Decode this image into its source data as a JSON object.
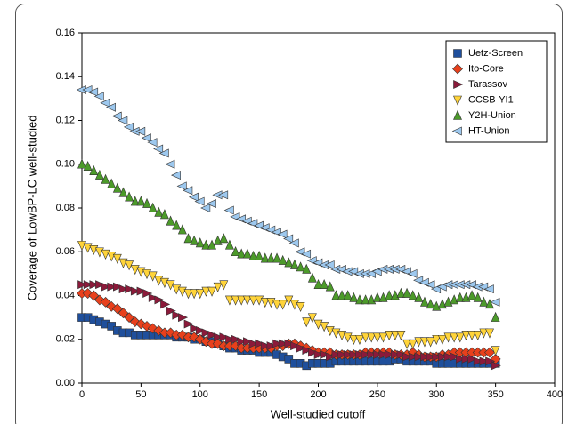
{
  "chart_data": {
    "type": "scatter",
    "xlabel": "Well-studied cutoff",
    "ylabel": "Coverage of LowBP-LC well-studied",
    "xlim": [
      0,
      400
    ],
    "xticks": [
      0,
      50,
      100,
      150,
      200,
      250,
      300,
      350,
      400
    ],
    "ylim": [
      0,
      0.16
    ],
    "yticks": [
      {
        "value": 0,
        "label": "0.00"
      },
      {
        "value": 0.02,
        "label": "0.02"
      },
      {
        "value": 0.04,
        "label": "0.04"
      },
      {
        "value": 0.06,
        "label": "0.06"
      },
      {
        "value": 0.08,
        "label": "0.08"
      },
      {
        "value": 0.1,
        "label": "0.10"
      },
      {
        "value": 0.12,
        "label": "0.12"
      },
      {
        "value": 0.14,
        "label": "0.14"
      },
      {
        "value": 0.16,
        "label": "0.16"
      }
    ],
    "grid": false,
    "legend": "upper right",
    "x": [
      0,
      5,
      10,
      15,
      20,
      25,
      30,
      35,
      40,
      45,
      50,
      55,
      60,
      65,
      70,
      75,
      80,
      85,
      90,
      95,
      100,
      105,
      110,
      115,
      120,
      125,
      130,
      135,
      140,
      145,
      150,
      155,
      160,
      165,
      170,
      175,
      180,
      185,
      190,
      195,
      200,
      205,
      210,
      215,
      220,
      225,
      230,
      235,
      240,
      245,
      250,
      255,
      260,
      265,
      270,
      275,
      280,
      285,
      290,
      295,
      300,
      305,
      310,
      315,
      320,
      325,
      330,
      335,
      340,
      345,
      350
    ],
    "series": [
      {
        "name": "Uetz-Screen",
        "color": "#1f4f9c",
        "marker": "square",
        "values": [
          0.03,
          0.03,
          0.029,
          0.028,
          0.027,
          0.026,
          0.024,
          0.023,
          0.023,
          0.022,
          0.022,
          0.022,
          0.022,
          0.022,
          0.022,
          0.022,
          0.021,
          0.021,
          0.021,
          0.02,
          0.02,
          0.019,
          0.019,
          0.018,
          0.017,
          0.016,
          0.016,
          0.015,
          0.015,
          0.015,
          0.014,
          0.014,
          0.014,
          0.013,
          0.012,
          0.011,
          0.009,
          0.009,
          0.008,
          0.009,
          0.009,
          0.009,
          0.009,
          0.01,
          0.01,
          0.01,
          0.01,
          0.01,
          0.01,
          0.01,
          0.01,
          0.01,
          0.01,
          0.011,
          0.011,
          0.01,
          0.01,
          0.01,
          0.01,
          0.01,
          0.009,
          0.009,
          0.009,
          0.009,
          0.009,
          0.009,
          0.009,
          0.009,
          0.009,
          0.009,
          0.009
        ]
      },
      {
        "name": "Ito-Core",
        "color": "#e8401c",
        "marker": "diamond",
        "values": [
          0.041,
          0.041,
          0.04,
          0.038,
          0.037,
          0.035,
          0.034,
          0.032,
          0.03,
          0.028,
          0.027,
          0.026,
          0.025,
          0.024,
          0.023,
          0.023,
          0.022,
          0.022,
          0.021,
          0.021,
          0.02,
          0.019,
          0.018,
          0.018,
          0.017,
          0.017,
          0.017,
          0.016,
          0.016,
          0.016,
          0.016,
          0.016,
          0.016,
          0.017,
          0.017,
          0.018,
          0.018,
          0.017,
          0.016,
          0.015,
          0.014,
          0.014,
          0.014,
          0.013,
          0.013,
          0.013,
          0.013,
          0.013,
          0.014,
          0.014,
          0.014,
          0.014,
          0.014,
          0.013,
          0.013,
          0.013,
          0.014,
          0.013,
          0.012,
          0.012,
          0.012,
          0.013,
          0.013,
          0.014,
          0.014,
          0.014,
          0.014,
          0.014,
          0.014,
          0.014,
          0.011
        ]
      },
      {
        "name": "Tarassov",
        "color": "#8b1a3a",
        "marker": "triangle-right",
        "values": [
          0.045,
          0.045,
          0.045,
          0.045,
          0.044,
          0.044,
          0.044,
          0.043,
          0.043,
          0.042,
          0.042,
          0.041,
          0.039,
          0.038,
          0.036,
          0.033,
          0.031,
          0.03,
          0.027,
          0.025,
          0.024,
          0.023,
          0.022,
          0.021,
          0.021,
          0.02,
          0.02,
          0.019,
          0.019,
          0.018,
          0.018,
          0.017,
          0.017,
          0.018,
          0.018,
          0.018,
          0.017,
          0.016,
          0.015,
          0.014,
          0.013,
          0.013,
          0.012,
          0.013,
          0.013,
          0.013,
          0.013,
          0.013,
          0.013,
          0.013,
          0.013,
          0.013,
          0.013,
          0.013,
          0.013,
          0.012,
          0.012,
          0.012,
          0.012,
          0.012,
          0.012,
          0.012,
          0.012,
          0.012,
          0.011,
          0.011,
          0.011,
          0.01,
          0.01,
          0.01,
          0.008
        ]
      },
      {
        "name": "CCSB-YI1",
        "color": "#ffd43a",
        "marker": "triangle-down",
        "values": [
          0.063,
          0.062,
          0.061,
          0.06,
          0.059,
          0.058,
          0.057,
          0.055,
          0.054,
          0.052,
          0.051,
          0.05,
          0.049,
          0.047,
          0.046,
          0.045,
          0.043,
          0.042,
          0.041,
          0.041,
          0.041,
          0.042,
          0.042,
          0.044,
          0.045,
          0.038,
          0.038,
          0.038,
          0.038,
          0.038,
          0.038,
          0.037,
          0.037,
          0.036,
          0.036,
          0.038,
          0.036,
          0.035,
          0.028,
          0.03,
          0.027,
          0.026,
          0.024,
          0.023,
          0.022,
          0.021,
          0.02,
          0.02,
          0.021,
          0.021,
          0.021,
          0.021,
          0.022,
          0.022,
          0.022,
          0.018,
          0.018,
          0.019,
          0.019,
          0.019,
          0.02,
          0.02,
          0.021,
          0.021,
          0.021,
          0.022,
          0.022,
          0.022,
          0.023,
          0.023,
          0.015
        ]
      },
      {
        "name": "Y2H-Union",
        "color": "#4c9a2a",
        "marker": "triangle-up",
        "values": [
          0.1,
          0.099,
          0.097,
          0.095,
          0.093,
          0.091,
          0.089,
          0.087,
          0.085,
          0.083,
          0.083,
          0.082,
          0.08,
          0.078,
          0.077,
          0.074,
          0.072,
          0.07,
          0.066,
          0.065,
          0.064,
          0.063,
          0.063,
          0.065,
          0.066,
          0.063,
          0.06,
          0.059,
          0.059,
          0.058,
          0.058,
          0.057,
          0.057,
          0.057,
          0.056,
          0.055,
          0.054,
          0.053,
          0.052,
          0.048,
          0.045,
          0.045,
          0.044,
          0.04,
          0.04,
          0.04,
          0.039,
          0.038,
          0.038,
          0.038,
          0.039,
          0.039,
          0.04,
          0.04,
          0.041,
          0.041,
          0.04,
          0.039,
          0.037,
          0.036,
          0.035,
          0.036,
          0.037,
          0.038,
          0.039,
          0.039,
          0.04,
          0.039,
          0.037,
          0.036,
          0.03
        ]
      },
      {
        "name": "HT-Union",
        "color": "#9dc8ee",
        "marker": "triangle-left",
        "values": [
          0.134,
          0.134,
          0.133,
          0.131,
          0.128,
          0.126,
          0.122,
          0.12,
          0.117,
          0.115,
          0.115,
          0.112,
          0.11,
          0.107,
          0.105,
          0.1,
          0.095,
          0.09,
          0.088,
          0.085,
          0.083,
          0.08,
          0.082,
          0.086,
          0.086,
          0.079,
          0.076,
          0.075,
          0.074,
          0.073,
          0.072,
          0.071,
          0.07,
          0.069,
          0.068,
          0.066,
          0.064,
          0.06,
          0.059,
          0.056,
          0.055,
          0.054,
          0.054,
          0.052,
          0.052,
          0.051,
          0.051,
          0.05,
          0.05,
          0.05,
          0.051,
          0.052,
          0.052,
          0.052,
          0.052,
          0.051,
          0.05,
          0.047,
          0.046,
          0.045,
          0.043,
          0.044,
          0.045,
          0.045,
          0.045,
          0.045,
          0.045,
          0.044,
          0.044,
          0.043,
          0.037
        ]
      }
    ]
  }
}
